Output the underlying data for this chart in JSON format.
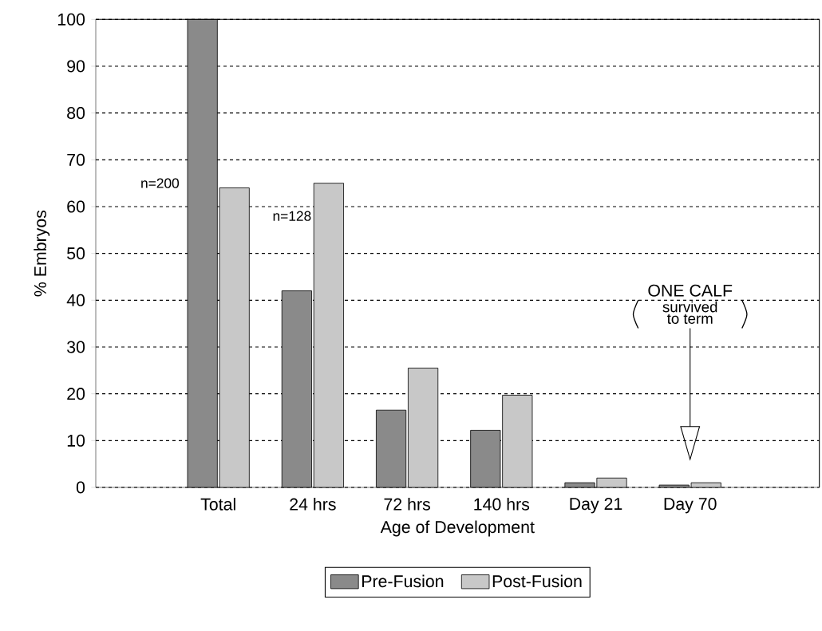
{
  "chart_data": {
    "type": "bar",
    "xlabel": "Age of Development",
    "ylabel": "% Embryos",
    "categories": [
      "Total",
      "24 hrs",
      "72 hrs",
      "140 hrs",
      "Day 21",
      "Day 70"
    ],
    "series": [
      {
        "name": "Pre-Fusion",
        "color": "#8a8a8a",
        "values": [
          100,
          42,
          16.5,
          12.2,
          1,
          0.5
        ]
      },
      {
        "name": "Post-Fusion",
        "color": "#c8c8c8",
        "values": [
          64,
          65,
          25.5,
          19.7,
          2,
          1
        ]
      }
    ],
    "ylim": [
      0,
      100
    ],
    "yticks": [
      0,
      10,
      20,
      30,
      40,
      50,
      60,
      70,
      80,
      90,
      100
    ],
    "grid": "y",
    "legend": "bottom",
    "annotations": [
      "n=200",
      "n=128",
      "ONE CALF",
      "survived",
      "to term"
    ]
  }
}
